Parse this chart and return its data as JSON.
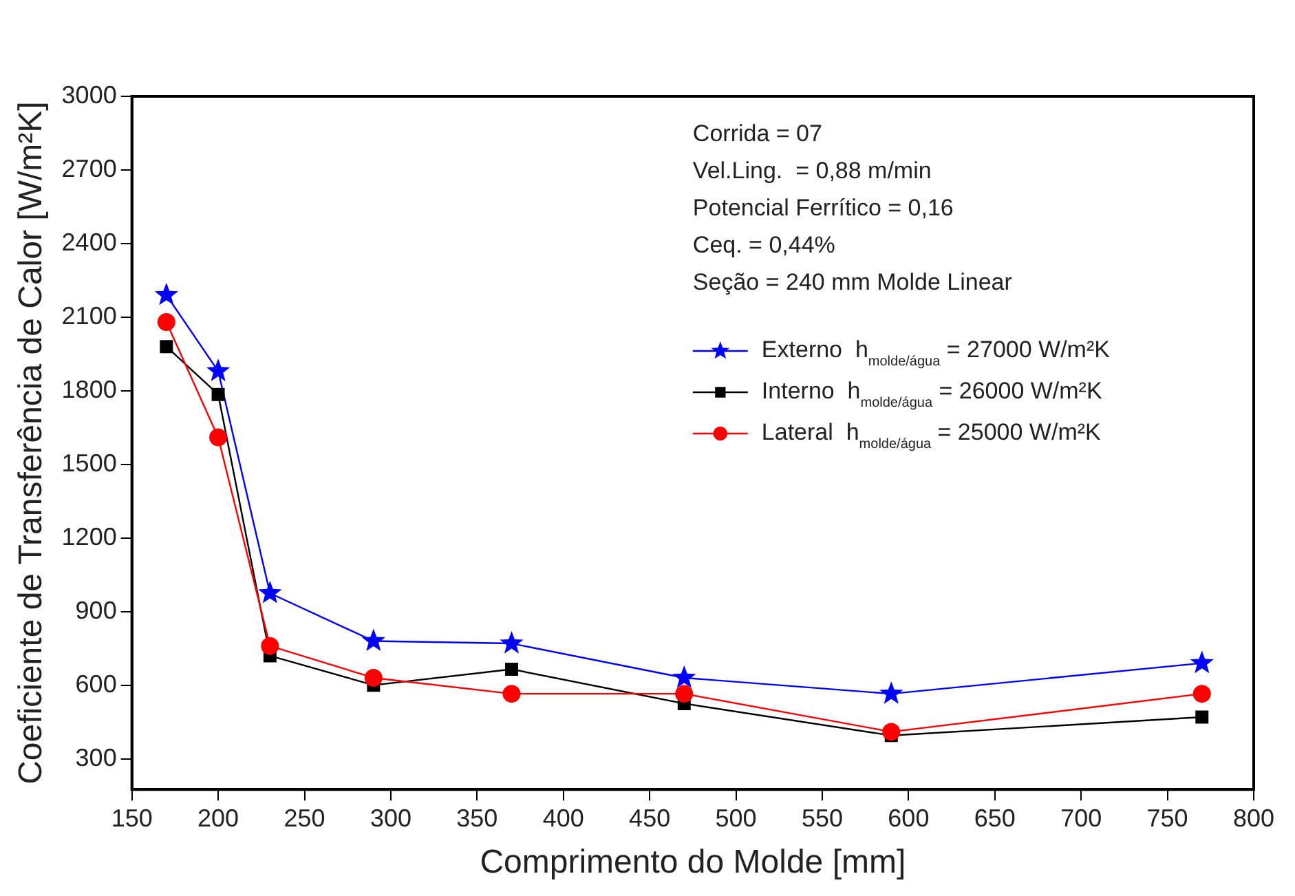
{
  "chart_data": {
    "type": "line",
    "xlabel": "Comprimento do Molde [mm]",
    "ylabel": "Coeficiente de Transferência de Calor [W/m²K]",
    "x": [
      170,
      200,
      230,
      290,
      370,
      470,
      590,
      770
    ],
    "series": [
      {
        "name": "Externo  h$_{molde/água}$ = 27000 W/m²K",
        "color": "#0000ff",
        "marker": "star",
        "values": [
          2190,
          1880,
          975,
          780,
          770,
          630,
          565,
          690
        ]
      },
      {
        "name": "Interno  h$_{molde/água}$ = 26000 W/m²K",
        "color": "#000000",
        "marker": "square",
        "values": [
          1980,
          1785,
          720,
          600,
          665,
          525,
          395,
          470
        ]
      },
      {
        "name": "Lateral  h$_{molde/água}$ = 25000 W/m²K",
        "color": "#ff0000",
        "marker": "circle",
        "values": [
          2080,
          1610,
          760,
          630,
          565,
          565,
          410,
          565
        ]
      }
    ],
    "annotations": [
      "Corrida = 07",
      "Vel.Ling.  = 0,88 m/min",
      "Potencial Ferrítico = 0,16",
      "Ceq. = 0,44%",
      "Seção = 240 mm Molde Linear"
    ],
    "xlim": [
      150,
      800
    ],
    "xticks": [
      150,
      200,
      250,
      300,
      350,
      400,
      450,
      500,
      550,
      600,
      650,
      700,
      750,
      800
    ],
    "ylim": [
      175,
      3000
    ],
    "yticks": [
      300,
      600,
      900,
      1200,
      1500,
      1800,
      2100,
      2400,
      2700,
      3000
    ],
    "grid": false,
    "legend": "top right",
    "line_style": "solid"
  }
}
